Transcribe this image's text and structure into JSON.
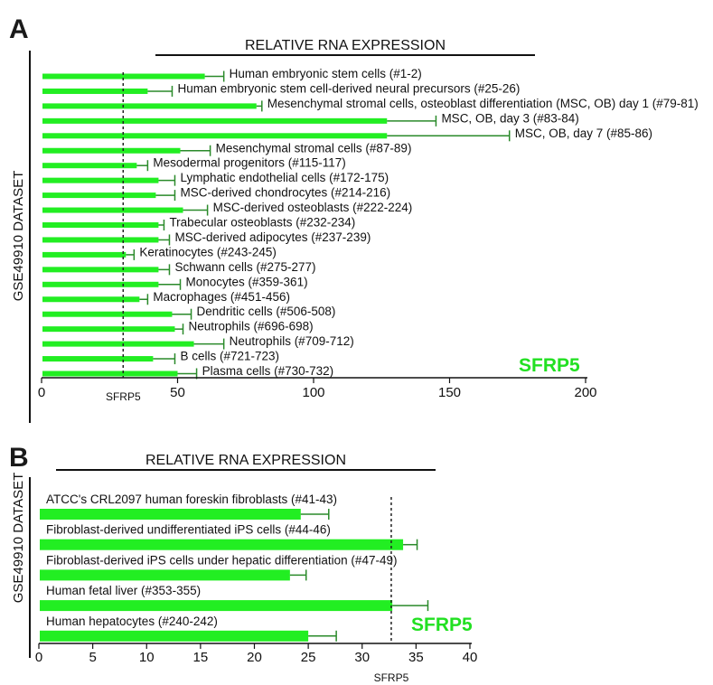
{
  "colors": {
    "bar": "#22ee22",
    "error": "#2a8a2a",
    "gene_label": "#22e022",
    "axis": "#111111"
  },
  "chart_data": [
    {
      "panel": "A",
      "type": "bar",
      "orientation": "horizontal",
      "header": "RELATIVE RNA EXPRESSION",
      "ylabel": "GSE49910 DATASET",
      "gene_label": "SFRP5",
      "reference_line": {
        "label": "SFRP5",
        "value": 30
      },
      "xlim": [
        0,
        200
      ],
      "xticks": [
        "0",
        "50",
        "100",
        "150",
        "200"
      ],
      "categories": [
        "Human embryonic stem cells (#1-2)",
        "Human embryonic stem cell-derived neural precursors  (#25-26)",
        "Mesenchymal stromal cells, osteoblast differentiation (MSC, OB) day 1 (#79-81)",
        "MSC, OB, day 3 (#83-84)",
        "MSC, OB, day 7 (#85-86)",
        "Mesenchymal stromal cells (#87-89)",
        "Mesodermal progenitors (#115-117)",
        "Lymphatic endothelial cells (#172-175)",
        "MSC-derived chondrocytes (#214-216)",
        "MSC-derived osteoblasts (#222-224)",
        "Trabecular osteoblasts (#232-234)",
        "MSC-derived adipocytes (#237-239)",
        "Keratinocytes (#243-245)",
        "Schwann cells (#275-277)",
        "Monocytes (#359-361)",
        "Macrophages (#451-456)",
        "Dendritic cells (#506-508)",
        "Neutrophils (#696-698)",
        "Neutrophils (#709-712)",
        "B cells (#721-723)",
        "Plasma cells (#730-732)"
      ],
      "values": [
        60,
        39,
        79,
        127,
        127,
        51,
        35,
        43,
        42,
        52,
        43,
        43,
        31,
        43,
        43,
        36,
        48,
        49,
        56,
        41,
        50
      ],
      "errors": [
        7,
        9,
        2,
        18,
        45,
        11,
        4,
        6,
        7,
        9,
        2,
        4,
        3,
        4,
        8,
        3,
        7,
        3,
        11,
        8,
        7
      ]
    },
    {
      "panel": "B",
      "type": "bar",
      "orientation": "horizontal",
      "header": "RELATIVE RNA EXPRESSION",
      "ylabel": "GSE49910 DATASET",
      "gene_label": "SFRP5",
      "reference_line": {
        "label": "SFRP5",
        "value": 32.7
      },
      "xlim": [
        0,
        40
      ],
      "xticks": [
        "0",
        "5",
        "10",
        "15",
        "20",
        "25",
        "30",
        "35",
        "40"
      ],
      "categories": [
        "ATCC's CRL2097 human foreskin fibroblasts (#41-43)",
        "Fibroblast-derived undifferentiated iPS cells (#44-46)",
        "Fibroblast-derived iPS cells under hepatic differentiation (#47-49)",
        "Human fetal liver (#353-355)",
        "Human hepatocytes (#240-242)"
      ],
      "values": [
        24.3,
        33.8,
        23.3,
        32.8,
        25
      ],
      "errors": [
        2.6,
        1.3,
        1.5,
        3.3,
        2.6
      ]
    }
  ]
}
